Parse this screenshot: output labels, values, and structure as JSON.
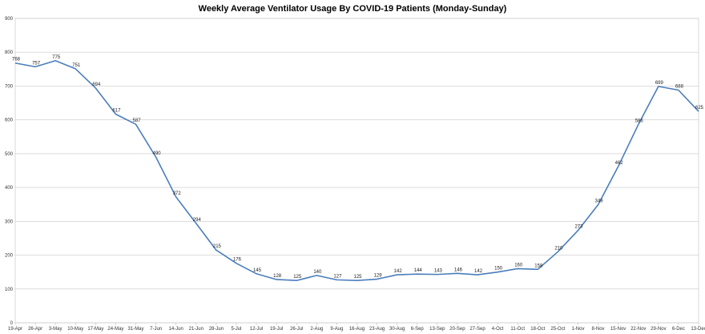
{
  "chart_data": {
    "type": "line",
    "title": "Weekly Average Ventilator Usage By COVID-19 Patients (Monday-Sunday)",
    "xlabel": "",
    "ylabel": "",
    "ylim": [
      0,
      900
    ],
    "yticks": [
      0,
      100,
      200,
      300,
      400,
      500,
      600,
      700,
      800,
      900
    ],
    "grid": true,
    "legend": "none",
    "line_color": "#4a7ebb",
    "categories": [
      "19-Apr",
      "26-Apr",
      "3-May",
      "10-May",
      "17-May",
      "24-May",
      "31-May",
      "7-Jun",
      "14-Jun",
      "21-Jun",
      "28-Jun",
      "5-Jul",
      "12-Jul",
      "19-Jul",
      "26-Jul",
      "2-Aug",
      "9-Aug",
      "16-Aug",
      "23-Aug",
      "30-Aug",
      "6-Sep",
      "13-Sep",
      "20-Sep",
      "27-Sep",
      "4-Oct",
      "11-Oct",
      "18-Oct",
      "25-Oct",
      "1-Nov",
      "8-Nov",
      "15-Nov",
      "22-Nov",
      "29-Nov",
      "6-Dec",
      "13-Dec"
    ],
    "series": [
      {
        "values": [
          768,
          757,
          775,
          751,
          694,
          617,
          587,
          490,
          372,
          294,
          215,
          176,
          145,
          128,
          125,
          140,
          127,
          125,
          129,
          142,
          144,
          143,
          146,
          142,
          150,
          160,
          158,
          210,
          273,
          349,
          462,
          586,
          699,
          688,
          625
        ]
      }
    ]
  }
}
